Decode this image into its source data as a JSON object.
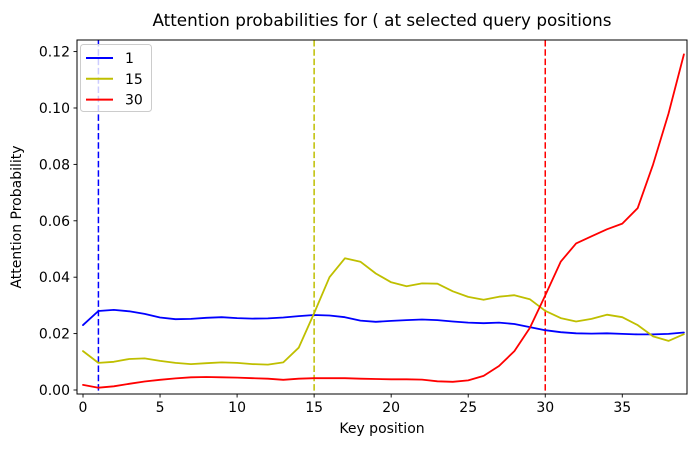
{
  "chart_data": {
    "type": "line",
    "title": "Attention probabilities for ( at selected query positions",
    "xlabel": "Key position",
    "ylabel": "Attention Probability",
    "grid": false,
    "legend_position": "upper left",
    "xlim": [
      -0.39,
      39.2
    ],
    "ylim": [
      -0.00142,
      0.12411
    ],
    "xticks": [
      0,
      5,
      10,
      15,
      20,
      25,
      30,
      35
    ],
    "yticks": [
      "0.00",
      "0.02",
      "0.04",
      "0.06",
      "0.08",
      "0.10",
      "0.12"
    ],
    "x": [
      0,
      1,
      2,
      3,
      4,
      5,
      6,
      7,
      8,
      9,
      10,
      11,
      12,
      13,
      14,
      15,
      16,
      17,
      18,
      19,
      20,
      21,
      22,
      23,
      24,
      25,
      26,
      27,
      28,
      29,
      30,
      31,
      32,
      33,
      34,
      35,
      36,
      37,
      38,
      39
    ],
    "series": [
      {
        "name": "1",
        "color": "#0000ff",
        "values": [
          0.023,
          0.028,
          0.0284,
          0.0279,
          0.027,
          0.0257,
          0.0251,
          0.0252,
          0.0256,
          0.0258,
          0.0255,
          0.0253,
          0.0254,
          0.0257,
          0.0262,
          0.0266,
          0.0264,
          0.0258,
          0.0246,
          0.0242,
          0.0245,
          0.0248,
          0.025,
          0.0248,
          0.0243,
          0.0239,
          0.0237,
          0.0239,
          0.0234,
          0.0223,
          0.0212,
          0.0205,
          0.0201,
          0.02,
          0.0201,
          0.0199,
          0.0197,
          0.0197,
          0.0199,
          0.0204
        ]
      },
      {
        "name": "15",
        "color": "#bfbf00",
        "values": [
          0.0138,
          0.0096,
          0.01,
          0.011,
          0.0112,
          0.0103,
          0.0096,
          0.0092,
          0.0095,
          0.0098,
          0.0096,
          0.0092,
          0.009,
          0.0098,
          0.015,
          0.0272,
          0.04,
          0.0467,
          0.0455,
          0.0413,
          0.0382,
          0.0368,
          0.0378,
          0.0377,
          0.035,
          0.033,
          0.032,
          0.0331,
          0.0336,
          0.0322,
          0.0281,
          0.0255,
          0.0243,
          0.0252,
          0.0267,
          0.0258,
          0.023,
          0.019,
          0.0174,
          0.0198
        ]
      },
      {
        "name": "30",
        "color": "#ff0000",
        "values": [
          0.0018,
          0.0008,
          0.0013,
          0.0022,
          0.003,
          0.0036,
          0.0041,
          0.0045,
          0.0046,
          0.0045,
          0.0044,
          0.0042,
          0.004,
          0.0036,
          0.004,
          0.0042,
          0.0042,
          0.0042,
          0.004,
          0.0039,
          0.0038,
          0.0038,
          0.0037,
          0.0031,
          0.0029,
          0.0034,
          0.005,
          0.0085,
          0.0138,
          0.022,
          0.0335,
          0.0455,
          0.052,
          0.0545,
          0.057,
          0.059,
          0.0645,
          0.08,
          0.098,
          0.119
        ]
      }
    ],
    "vlines": [
      {
        "x": 1,
        "color": "#0000ff",
        "style": "dashed"
      },
      {
        "x": 15,
        "color": "#bfbf00",
        "style": "dashed"
      },
      {
        "x": 30,
        "color": "#ff0000",
        "style": "dashed"
      }
    ],
    "colors": {
      "spine": "#000000",
      "background": "#ffffff",
      "legend_border": "#cccccc"
    }
  }
}
